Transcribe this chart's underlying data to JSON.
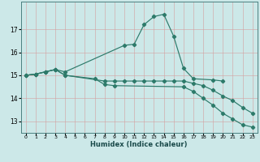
{
  "xlabel": "Humidex (Indice chaleur)",
  "bg_color": "#cce8e8",
  "grid_color": "#aacfcf",
  "line_color": "#2d7a6a",
  "xlim": [
    -0.5,
    23.5
  ],
  "ylim": [
    12.5,
    18.2
  ],
  "yticks": [
    13,
    14,
    15,
    16,
    17
  ],
  "xticks": [
    0,
    1,
    2,
    3,
    4,
    5,
    6,
    7,
    8,
    9,
    10,
    11,
    12,
    13,
    14,
    15,
    16,
    17,
    18,
    19,
    20,
    21,
    22,
    23
  ],
  "series": [
    {
      "x": [
        0,
        1,
        2,
        3,
        4,
        10,
        11,
        12,
        13,
        14,
        15,
        16,
        17,
        19,
        20
      ],
      "y": [
        15.0,
        15.05,
        15.15,
        15.25,
        15.15,
        16.3,
        16.35,
        17.2,
        17.55,
        17.65,
        16.7,
        15.3,
        14.85,
        14.8,
        14.75
      ]
    },
    {
      "x": [
        0,
        1,
        2,
        3,
        4,
        8,
        9,
        10,
        11,
        12,
        13,
        14,
        15,
        16,
        17,
        18,
        19,
        20,
        21,
        22,
        23
      ],
      "y": [
        15.0,
        15.05,
        15.15,
        15.25,
        15.0,
        14.75,
        14.75,
        14.75,
        14.75,
        14.75,
        14.75,
        14.75,
        14.75,
        14.75,
        14.65,
        14.55,
        14.35,
        14.1,
        13.9,
        13.6,
        13.35
      ]
    },
    {
      "x": [
        0,
        1,
        2,
        3,
        4,
        7,
        8,
        9,
        16,
        17,
        18,
        19,
        20,
        21,
        22,
        23
      ],
      "y": [
        15.0,
        15.05,
        15.15,
        15.25,
        15.0,
        14.85,
        14.6,
        14.55,
        14.5,
        14.3,
        14.0,
        13.7,
        13.35,
        13.1,
        12.85,
        12.75
      ]
    }
  ]
}
